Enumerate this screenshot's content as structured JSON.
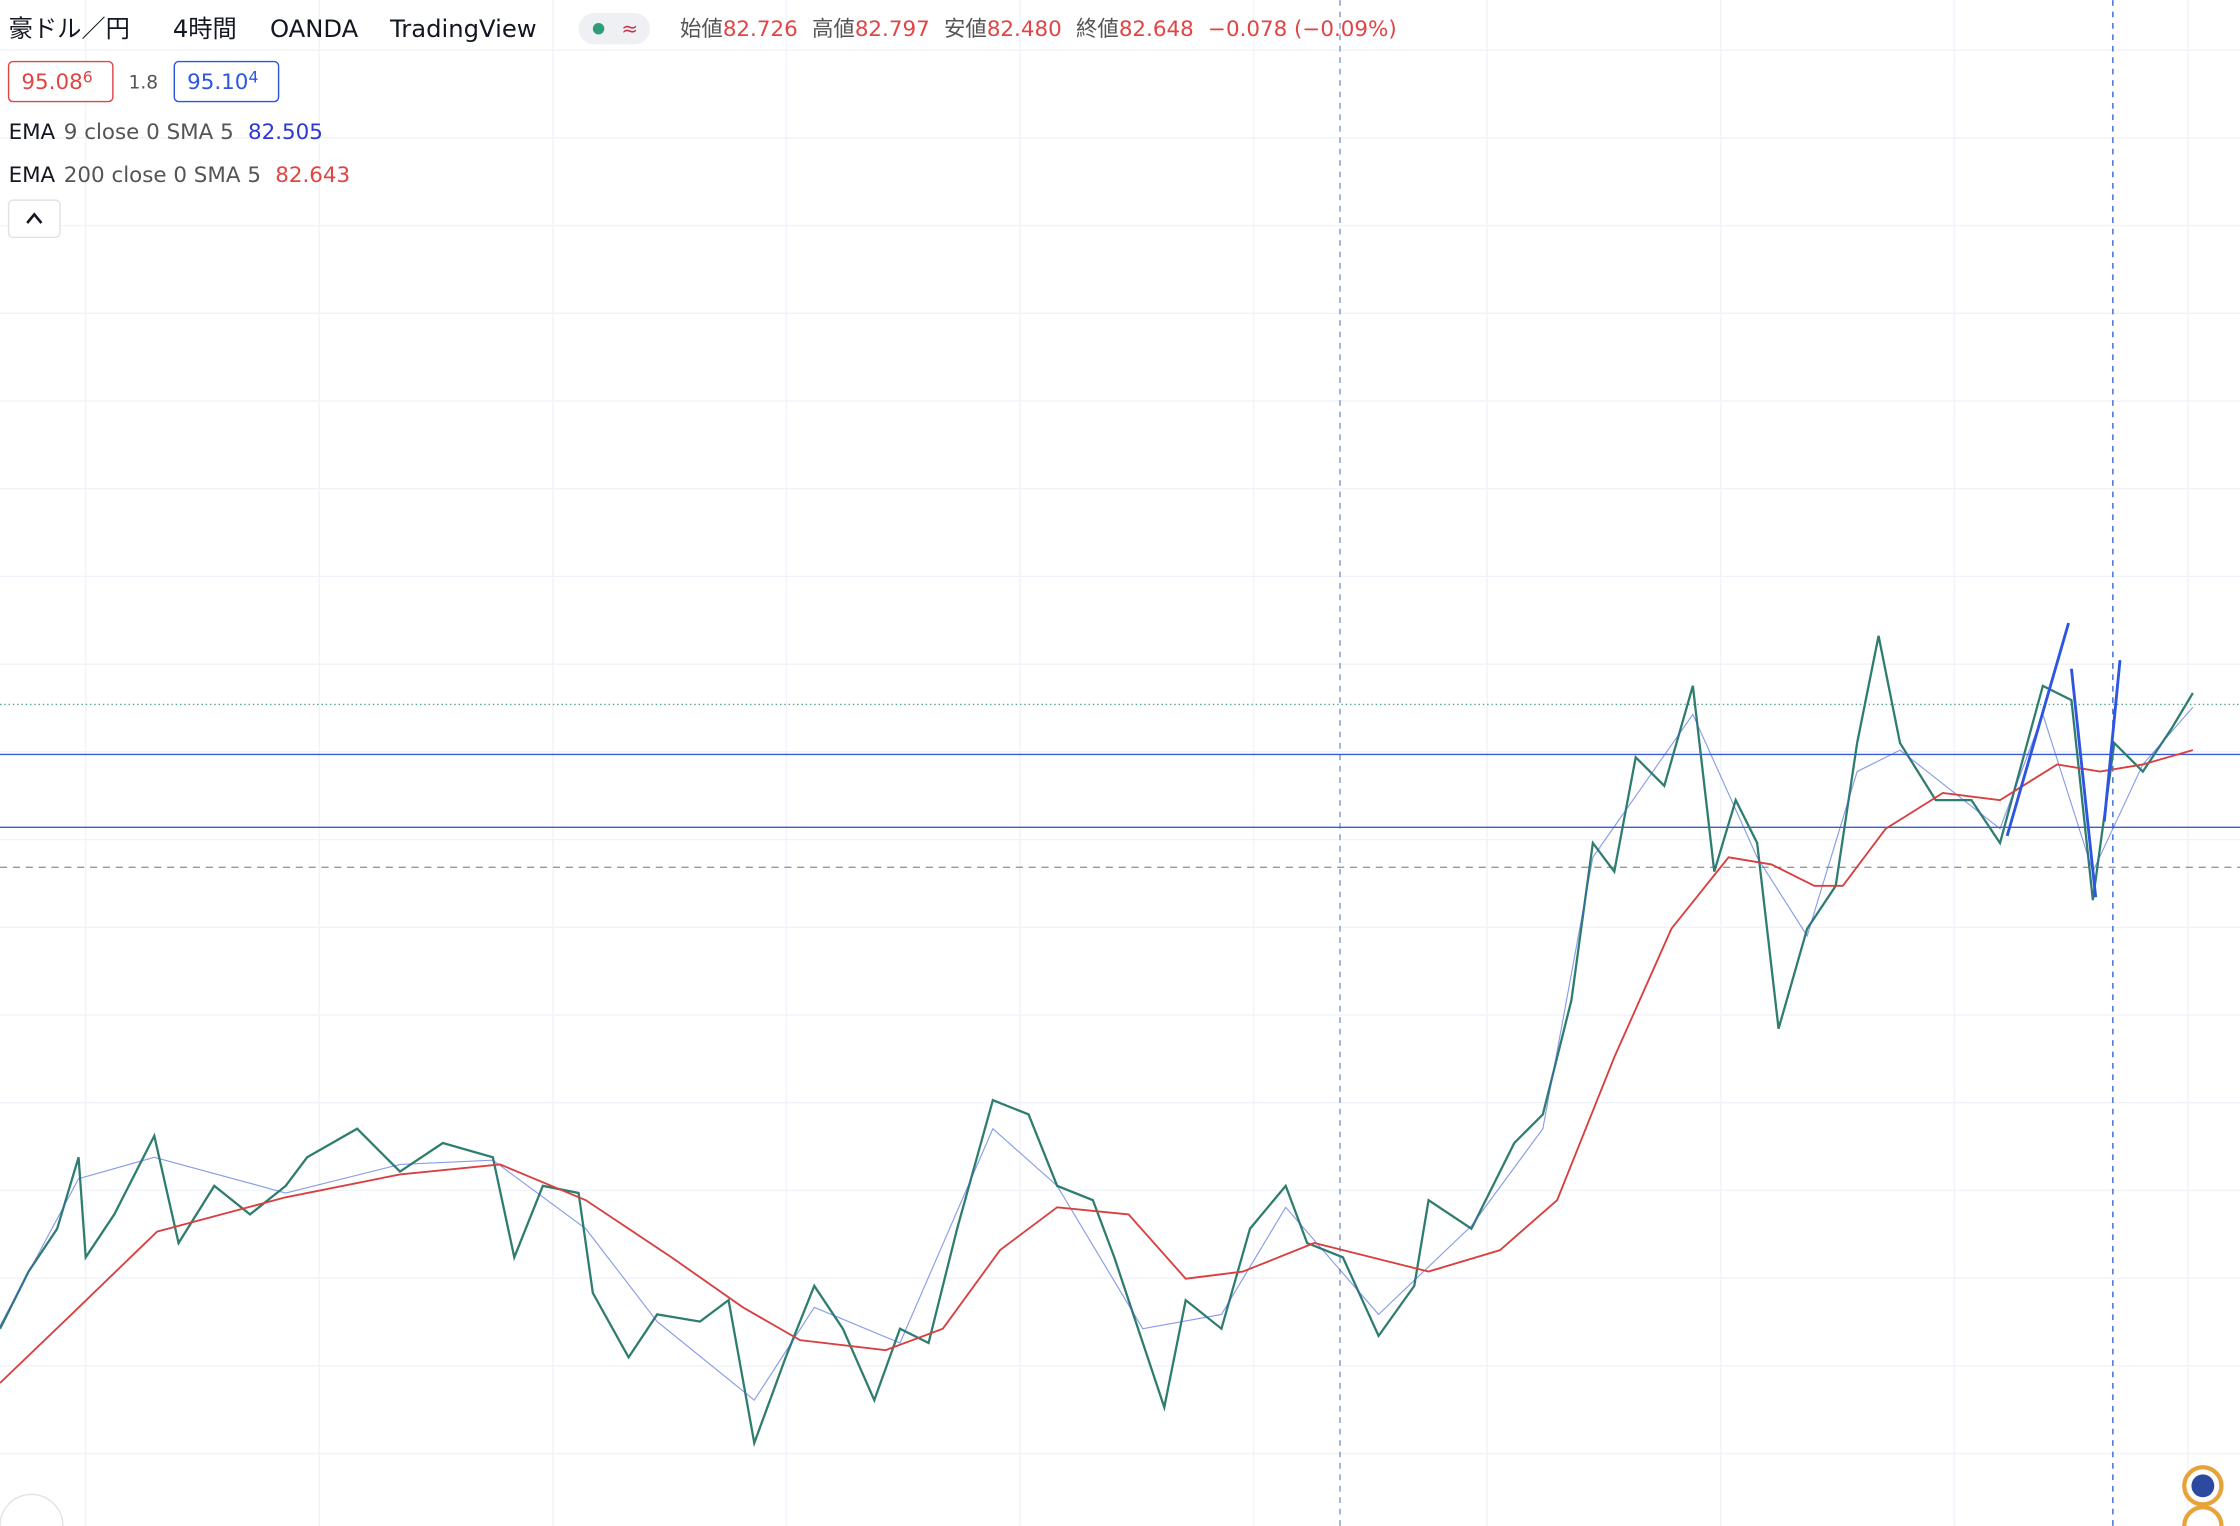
{
  "header": {
    "symbol": "豪ドル／円",
    "interval": "4時間",
    "broker": "OANDA",
    "platform": "TradingView",
    "approx_icon": "≈",
    "ohlc": [
      {
        "label": "始値",
        "value": "82.726"
      },
      {
        "label": "高値",
        "value": "82.797"
      },
      {
        "label": "安値",
        "value": "82.480"
      },
      {
        "label": "終値",
        "value": "82.648"
      }
    ],
    "change": "−0.078 (−0.09%)"
  },
  "quote": {
    "bid": {
      "main": "95.08",
      "pip": "6"
    },
    "spread": "1.8",
    "ask": {
      "main": "95.10",
      "pip": "4"
    }
  },
  "indicators": [
    {
      "name": "EMA",
      "params": "9 close 0 SMA 5",
      "value": "82.505"
    },
    {
      "name": "EMA",
      "params": "200 close 0 SMA 5",
      "value": "82.643"
    }
  ]
}
